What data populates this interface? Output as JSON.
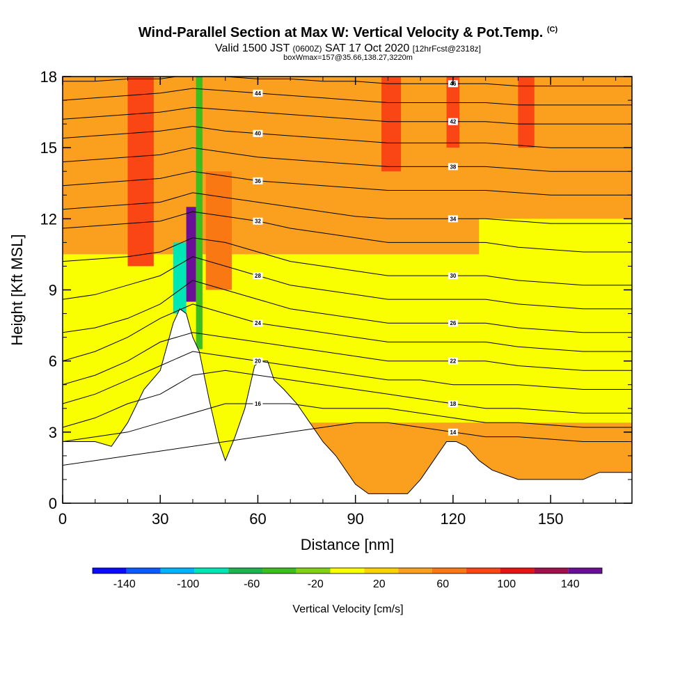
{
  "titles": {
    "main": "Wind-Parallel Section at Max W: Vertical Velocity & Pot.Temp.",
    "copyright": "(C)",
    "valid_a": "Valid 1500 JST ",
    "valid_b": "(0600Z)",
    "valid_c": " SAT 17 Oct 2020 ",
    "valid_d": "[12hrFcst@2318z]",
    "box": "boxWmax=157@35.66,138.27,3220m"
  },
  "chart_data": {
    "type": "heatmap",
    "xlabel": "Distance [nm]",
    "ylabel": "Height [Kft MSL]",
    "xlim": [
      0,
      175
    ],
    "ylim": [
      0,
      18
    ],
    "x_ticks": [
      0,
      30,
      60,
      90,
      120,
      150
    ],
    "y_ticks": [
      0,
      3,
      6,
      9,
      12,
      15,
      18
    ],
    "terrain_kft": [
      [
        0,
        2.6
      ],
      [
        5,
        2.6
      ],
      [
        10,
        2.6
      ],
      [
        15,
        2.4
      ],
      [
        20,
        3.4
      ],
      [
        25,
        4.8
      ],
      [
        30,
        5.6
      ],
      [
        34,
        7.6
      ],
      [
        36,
        8.2
      ],
      [
        38,
        8.0
      ],
      [
        40,
        7.0
      ],
      [
        42,
        6.4
      ],
      [
        45,
        4.4
      ],
      [
        48,
        2.6
      ],
      [
        50,
        1.8
      ],
      [
        53,
        2.8
      ],
      [
        56,
        4.0
      ],
      [
        59,
        5.8
      ],
      [
        61,
        6.0
      ],
      [
        63,
        6.0
      ],
      [
        65,
        5.2
      ],
      [
        68,
        4.8
      ],
      [
        72,
        4.2
      ],
      [
        76,
        3.4
      ],
      [
        80,
        2.6
      ],
      [
        84,
        2.0
      ],
      [
        88,
        1.2
      ],
      [
        90,
        0.8
      ],
      [
        94,
        0.4
      ],
      [
        98,
        0.4
      ],
      [
        102,
        0.4
      ],
      [
        106,
        0.4
      ],
      [
        110,
        1.0
      ],
      [
        114,
        1.8
      ],
      [
        118,
        2.6
      ],
      [
        121,
        2.6
      ],
      [
        124,
        2.4
      ],
      [
        128,
        1.8
      ],
      [
        132,
        1.4
      ],
      [
        136,
        1.2
      ],
      [
        140,
        1.0
      ],
      [
        145,
        1.0
      ],
      [
        150,
        1.0
      ],
      [
        155,
        1.0
      ],
      [
        160,
        1.0
      ],
      [
        165,
        1.3
      ],
      [
        170,
        1.3
      ],
      [
        175,
        1.3
      ]
    ],
    "theta_contours_kft": [
      {
        "label": "14",
        "y": [
          1.6,
          1.8,
          2.0,
          2.2,
          2.4,
          2.6,
          2.8,
          3.0,
          3.2,
          3.4,
          3.4,
          3.2,
          3.0,
          2.8,
          2.8,
          2.7,
          2.6,
          2.6
        ]
      },
      {
        "label": "16",
        "y": [
          2.6,
          2.8,
          3.0,
          3.4,
          3.8,
          4.2,
          4.2,
          4.2,
          4.0,
          4.0,
          4.0,
          3.8,
          3.6,
          3.4,
          3.4,
          3.3,
          3.2,
          3.2
        ]
      },
      {
        "label": "18",
        "y": [
          3.2,
          3.6,
          4.2,
          4.6,
          5.4,
          5.6,
          5.4,
          5.2,
          5.0,
          4.8,
          4.6,
          4.4,
          4.2,
          4.0,
          4.0,
          3.9,
          3.8,
          3.8
        ]
      },
      {
        "label": "20",
        "y": [
          4.2,
          4.6,
          5.2,
          5.8,
          6.4,
          6.2,
          6.0,
          5.8,
          5.6,
          5.4,
          5.2,
          5.2,
          5.0,
          5.0,
          5.0,
          4.9,
          4.8,
          4.8
        ]
      },
      {
        "label": "22",
        "y": [
          5.0,
          5.4,
          6.0,
          6.8,
          7.2,
          7.0,
          6.8,
          6.6,
          6.4,
          6.2,
          6.0,
          6.0,
          6.0,
          6.0,
          5.8,
          5.7,
          5.6,
          5.6
        ]
      },
      {
        "label": "24",
        "y": [
          6.0,
          6.4,
          7.0,
          7.8,
          8.4,
          8.0,
          7.6,
          7.4,
          7.2,
          7.0,
          6.8,
          6.8,
          6.8,
          6.8,
          6.6,
          6.5,
          6.4,
          6.4
        ]
      },
      {
        "label": "26",
        "y": [
          7.2,
          7.4,
          7.8,
          8.4,
          9.4,
          9.0,
          8.6,
          8.2,
          8.0,
          7.8,
          7.6,
          7.6,
          7.6,
          7.6,
          7.4,
          7.3,
          7.2,
          7.2
        ]
      },
      {
        "label": "28",
        "y": [
          8.6,
          8.8,
          9.2,
          9.6,
          10.4,
          10.0,
          9.6,
          9.2,
          9.0,
          8.8,
          8.6,
          8.6,
          8.6,
          8.6,
          8.4,
          8.3,
          8.2,
          8.2
        ]
      },
      {
        "label": "30",
        "y": [
          10.2,
          10.3,
          10.4,
          10.6,
          11.2,
          11.0,
          10.6,
          10.2,
          10.0,
          9.8,
          9.6,
          9.6,
          9.6,
          9.6,
          9.4,
          9.3,
          9.2,
          9.2
        ]
      },
      {
        "label": "32",
        "y": [
          11.6,
          11.7,
          11.8,
          11.9,
          12.3,
          12.1,
          11.9,
          11.6,
          11.4,
          11.2,
          11.0,
          11.0,
          11.0,
          11.0,
          10.8,
          10.7,
          10.6,
          10.6
        ]
      },
      {
        "label": "34",
        "y": [
          12.4,
          12.5,
          12.6,
          12.7,
          13.1,
          12.9,
          12.7,
          12.5,
          12.3,
          12.1,
          12.0,
          12.0,
          12.0,
          12.0,
          11.9,
          11.8,
          11.8,
          11.8
        ]
      },
      {
        "label": "36",
        "y": [
          13.4,
          13.5,
          13.6,
          13.7,
          14.0,
          13.8,
          13.6,
          13.5,
          13.4,
          13.3,
          13.2,
          13.2,
          13.2,
          13.2,
          13.1,
          13.0,
          13.0,
          13.0
        ]
      },
      {
        "label": "38",
        "y": [
          14.4,
          14.5,
          14.6,
          14.7,
          15.0,
          14.8,
          14.6,
          14.5,
          14.4,
          14.3,
          14.2,
          14.2,
          14.2,
          14.2,
          14.1,
          14.0,
          14.0,
          14.0
        ]
      },
      {
        "label": "40",
        "y": [
          15.4,
          15.5,
          15.6,
          15.7,
          15.9,
          15.7,
          15.6,
          15.5,
          15.4,
          15.3,
          15.2,
          15.2,
          15.2,
          15.2,
          15.1,
          15.0,
          15.0,
          15.0
        ]
      },
      {
        "label": "42",
        "y": [
          16.2,
          16.3,
          16.4,
          16.5,
          16.7,
          16.6,
          16.5,
          16.4,
          16.3,
          16.2,
          16.1,
          16.1,
          16.1,
          16.1,
          16.0,
          16.0,
          16.0,
          16.0
        ]
      },
      {
        "label": "44",
        "y": [
          17.0,
          17.1,
          17.2,
          17.3,
          17.5,
          17.4,
          17.3,
          17.2,
          17.1,
          17.0,
          16.9,
          16.9,
          16.9,
          16.9,
          16.8,
          16.8,
          16.8,
          16.8
        ]
      },
      {
        "label": "46",
        "y": [
          17.8,
          17.8,
          17.9,
          17.9,
          18.1,
          18.0,
          17.9,
          17.9,
          17.8,
          17.8,
          17.7,
          17.7,
          17.7,
          17.7,
          17.6,
          17.6,
          17.6,
          17.6
        ]
      }
    ],
    "theta_contour_x_nm": [
      0,
      10,
      20,
      30,
      40,
      50,
      60,
      70,
      80,
      90,
      100,
      110,
      120,
      130,
      140,
      150,
      160,
      175
    ],
    "velocity_regions_cmps": [
      {
        "x0": 0,
        "x1": 175,
        "y0": 10.5,
        "y1": 18,
        "value": 20
      },
      {
        "x0": 0,
        "x1": 175,
        "y0": 0,
        "y1": 10.5,
        "value": -20
      },
      {
        "x0": 60,
        "x1": 175,
        "y0": 0,
        "y1": 3.4,
        "value": 20
      },
      {
        "x0": 20,
        "x1": 28,
        "y0": 10,
        "y1": 18,
        "value": 60
      },
      {
        "x0": 44,
        "x1": 52,
        "y0": 9,
        "y1": 14,
        "value": 40
      },
      {
        "x0": 98,
        "x1": 104,
        "y0": 14,
        "y1": 18,
        "value": 60
      },
      {
        "x0": 118,
        "x1": 122,
        "y0": 15,
        "y1": 18,
        "value": 60
      },
      {
        "x0": 140,
        "x1": 145,
        "y0": 15,
        "y1": 18,
        "value": 60
      },
      {
        "x0": 34,
        "x1": 38,
        "y0": 8,
        "y1": 11,
        "value": -100
      },
      {
        "x0": 38,
        "x1": 41,
        "y0": 8.5,
        "y1": 12.5,
        "value": 120
      },
      {
        "x0": 41,
        "x1": 43,
        "y0": 6.5,
        "y1": 18,
        "value": -60
      },
      {
        "x0": 128,
        "x1": 175,
        "y0": 3.4,
        "y1": 12,
        "value": -20
      }
    ],
    "colorbar": {
      "label": "Vertical Velocity [cm/s]",
      "tick_labels": [
        "-140",
        "-100",
        "-60",
        "-20",
        "20",
        "60",
        "100",
        "140"
      ],
      "min": -160,
      "max": 160,
      "step": 20,
      "colors": [
        "#0a0aff",
        "#0a5aff",
        "#00b4ff",
        "#00e6b4",
        "#1eb450",
        "#3cbe1e",
        "#82d214",
        "#faff00",
        "#fad200",
        "#faa01e",
        "#fa7814",
        "#fa4614",
        "#e61414",
        "#a0104a",
        "#6a1096"
      ]
    }
  }
}
